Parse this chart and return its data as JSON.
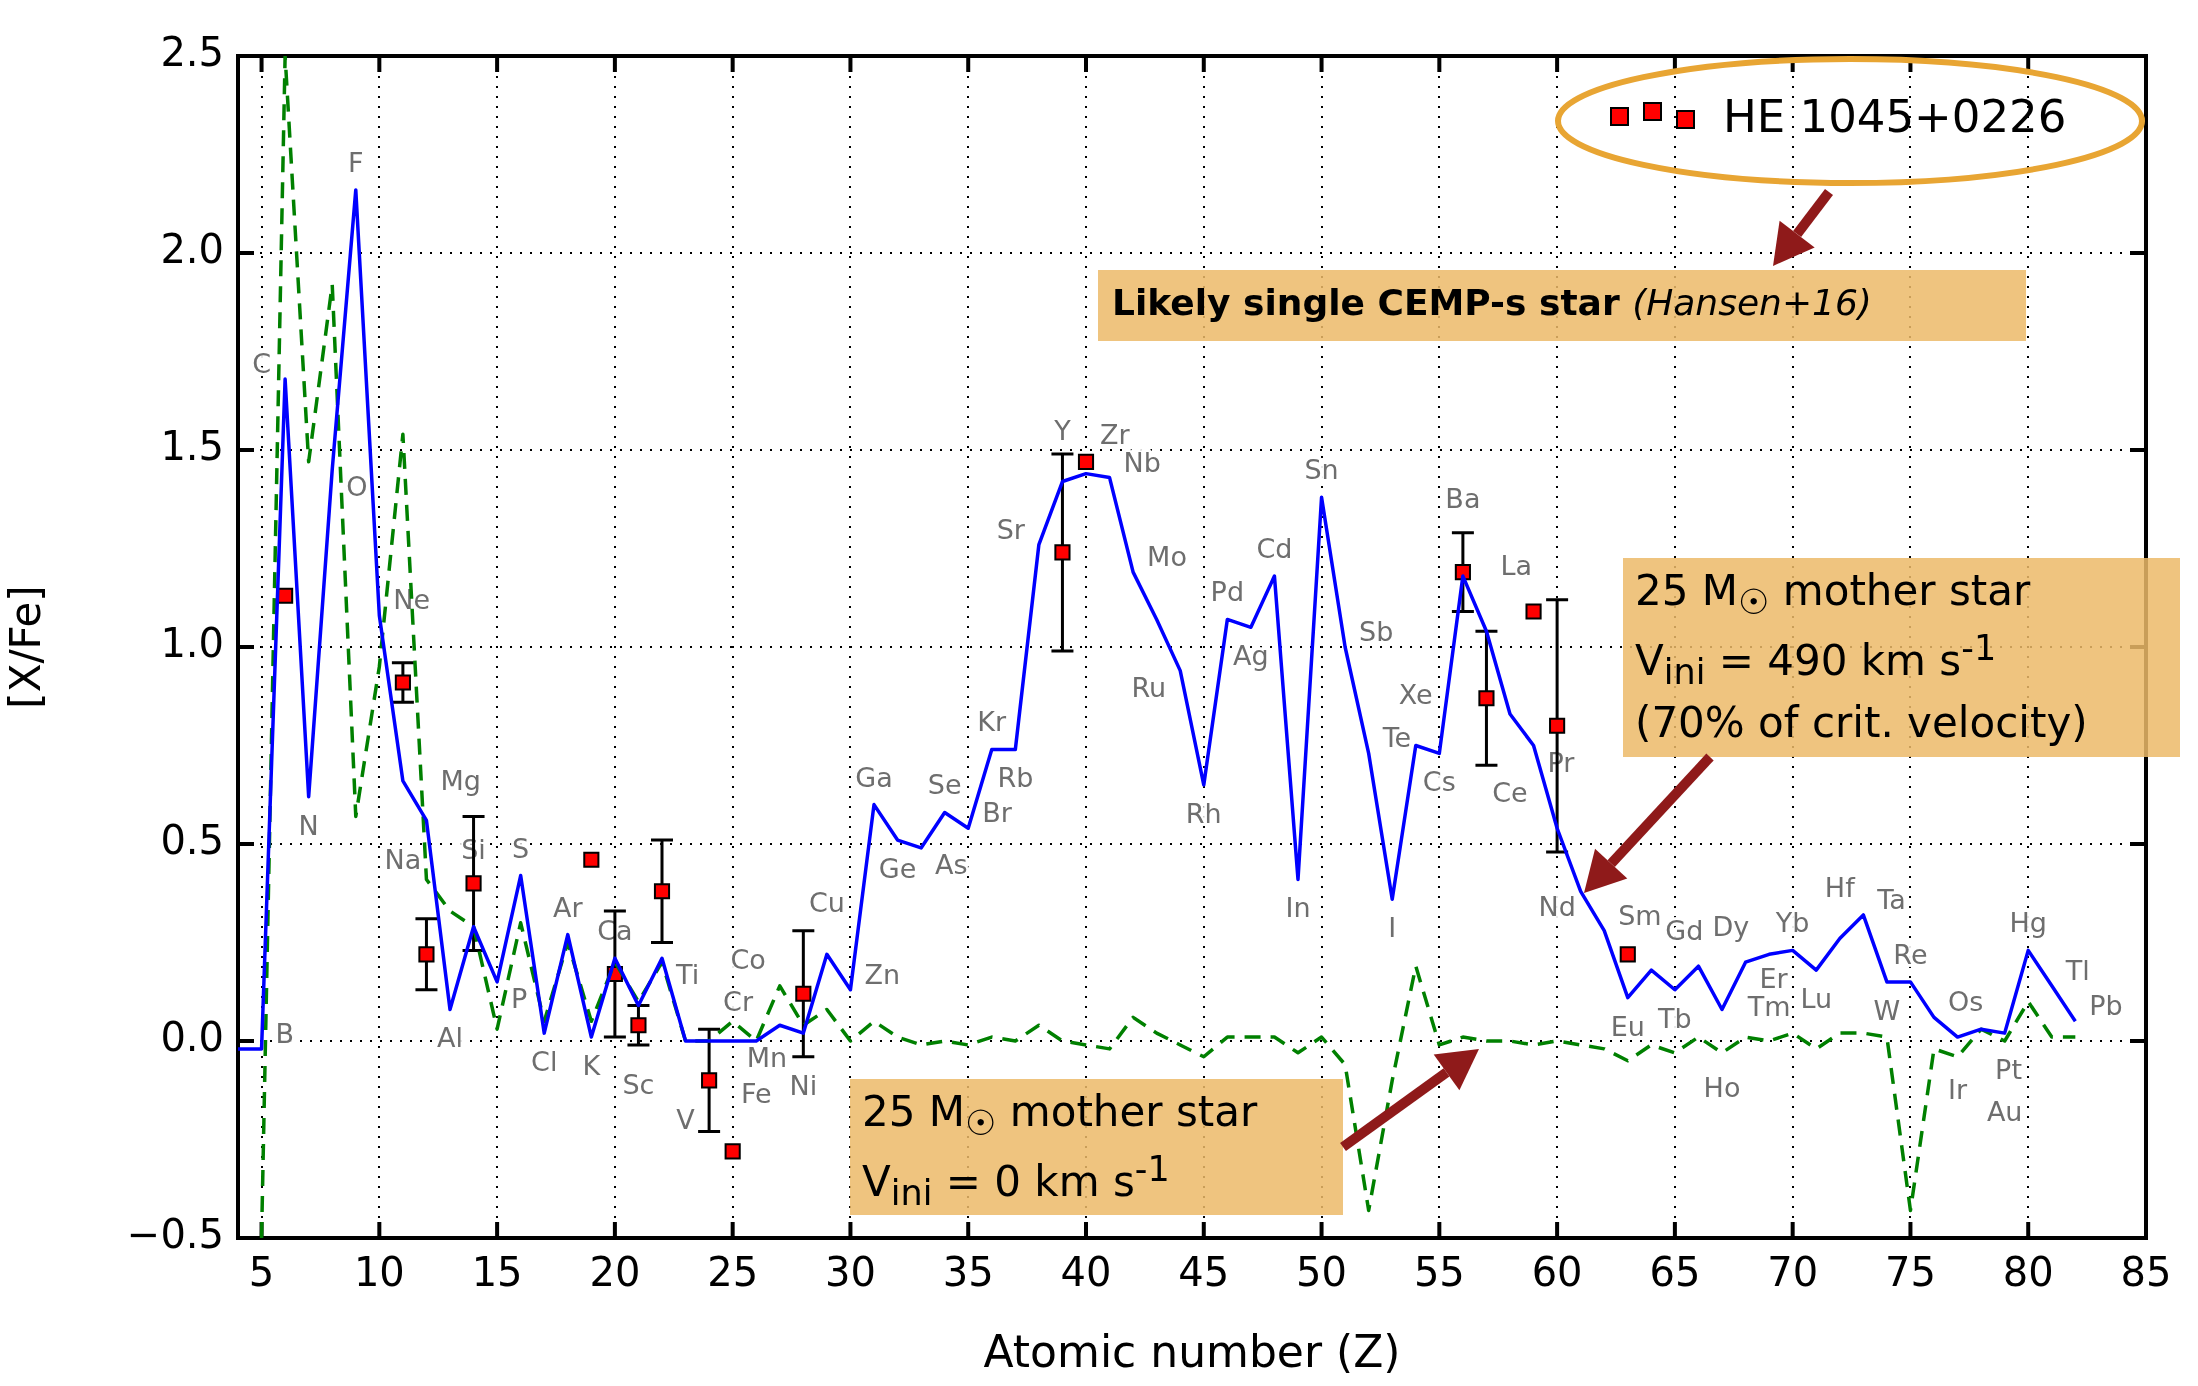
{
  "chart_data": {
    "type": "line",
    "xlabel": "Atomic number (Z)",
    "ylabel": "[X/Fe]",
    "xlim": [
      4,
      85
    ],
    "ylim": [
      -0.5,
      2.5
    ],
    "xticks": [
      5,
      10,
      15,
      20,
      25,
      30,
      35,
      40,
      45,
      50,
      55,
      60,
      65,
      70,
      75,
      80,
      85
    ],
    "yticks": [
      {
        "value": -0.5,
        "label": "−0.5"
      },
      {
        "value": 0,
        "label": "0.0"
      },
      0.5,
      {
        "value": 1,
        "label": "1.0"
      },
      1.5,
      {
        "value": 2,
        "label": "2.0"
      },
      2.5
    ],
    "grid": true,
    "legend": "top right",
    "series": [
      {
        "type": "line",
        "color": "#0000ff",
        "marker": "none",
        "line_style": "solid",
        "x": [
          4,
          5,
          6,
          7,
          8,
          9,
          10,
          11,
          12,
          13,
          14,
          15,
          16,
          17,
          18,
          19,
          20,
          21,
          22,
          23,
          24,
          25,
          26,
          27,
          28,
          29,
          30,
          31,
          32,
          33,
          34,
          35,
          36,
          37,
          38,
          39,
          40,
          41,
          42,
          43,
          44,
          45,
          46,
          47,
          48,
          49,
          50,
          51,
          52,
          53,
          54,
          55,
          56,
          57,
          58,
          59,
          60,
          61,
          62,
          63,
          64,
          65,
          66,
          67,
          68,
          69,
          70,
          71,
          72,
          73,
          74,
          75,
          76,
          77,
          78,
          79,
          80,
          81,
          82
        ],
        "values": [
          -0.02,
          -0.02,
          1.68,
          0.62,
          1.45,
          2.16,
          1.08,
          0.66,
          0.56,
          0.08,
          0.29,
          0.15,
          0.42,
          0.02,
          0.27,
          0.01,
          0.21,
          0.09,
          0.21,
          0,
          0,
          0,
          0,
          0.04,
          0.02,
          0.22,
          0.13,
          0.6,
          0.51,
          0.49,
          0.58,
          0.54,
          0.74,
          0.74,
          1.26,
          1.42,
          1.44,
          1.43,
          1.19,
          1.07,
          0.94,
          0.65,
          1.07,
          1.05,
          1.18,
          0.41,
          1.38,
          1.0,
          0.73,
          0.36,
          0.75,
          0.73,
          1.18,
          1.04,
          0.83,
          0.75,
          0.54,
          0.38,
          0.28,
          0.11,
          0.18,
          0.13,
          0.19,
          0.08,
          0.2,
          0.22,
          0.23,
          0.18,
          0.26,
          0.32,
          0.15,
          0.15,
          0.06,
          0.01,
          0.03,
          0.02,
          0.23,
          0.14,
          0.05
        ]
      },
      {
        "type": "line",
        "color": "#008000",
        "marker": "none",
        "line_style": "dashed",
        "x": [
          5,
          6,
          7,
          8,
          9,
          10,
          11,
          12,
          13,
          14,
          15,
          16,
          17,
          18,
          19,
          20,
          21,
          22,
          23,
          24,
          25,
          26,
          27,
          28,
          29,
          30,
          31,
          32,
          33,
          34,
          35,
          36,
          37,
          38,
          39,
          40,
          41,
          42,
          43,
          44,
          45,
          46,
          47,
          48,
          49,
          50,
          51,
          52,
          53,
          54,
          55,
          56,
          57,
          58,
          59,
          60,
          61,
          62,
          63,
          64,
          65,
          66,
          67,
          68,
          69,
          70,
          71,
          72,
          73,
          74,
          75,
          76,
          77,
          78,
          79,
          80,
          81,
          82
        ],
        "values": [
          -0.5,
          2.5,
          1.47,
          1.92,
          0.57,
          0.95,
          1.54,
          0.41,
          0.33,
          0.29,
          0.03,
          0.3,
          0.05,
          0.25,
          0.05,
          0.2,
          0.1,
          0.2,
          0,
          0,
          0.05,
          0,
          0.14,
          0.04,
          0.08,
          0,
          0.05,
          0.01,
          -0.01,
          0,
          -0.01,
          0.01,
          0,
          0.04,
          0,
          -0.01,
          -0.02,
          0.06,
          0.02,
          -0.01,
          -0.04,
          0.01,
          0.01,
          0.01,
          -0.03,
          0.01,
          -0.06,
          -0.43,
          -0.1,
          0.19,
          -0.01,
          0.01,
          0,
          0,
          -0.01,
          0,
          -0.01,
          -0.02,
          -0.05,
          -0.01,
          -0.03,
          0.01,
          -0.03,
          0.01,
          0,
          0.02,
          -0.02,
          0.02,
          0.02,
          0.01,
          -0.43,
          -0.02,
          -0.04,
          0.03,
          0,
          0.1,
          0.01,
          0.01
        ]
      },
      {
        "type": "scatter",
        "name": "HE 1045+0226",
        "color": "#ff0000",
        "marker": "square",
        "x": [
          6,
          11,
          12,
          14,
          19,
          20,
          21,
          22,
          24,
          25,
          28,
          39,
          40,
          56,
          57,
          59,
          60,
          63
        ],
        "values": [
          1.13,
          0.91,
          0.22,
          0.4,
          0.46,
          0.17,
          0.04,
          0.38,
          -0.1,
          -0.28,
          0.12,
          1.24,
          1.47,
          1.19,
          0.87,
          1.09,
          0.8,
          0.22
        ],
        "errors": [
          null,
          0.05,
          0.09,
          0.17,
          null,
          0.16,
          0.05,
          0.13,
          0.13,
          null,
          0.16,
          0.25,
          null,
          0.1,
          0.17,
          null,
          0.32,
          null
        ]
      }
    ],
    "annotations": [
      "Likely single CEMP-s star",
      "(Hansen+16)",
      "25 M$_{☉}$ mother star",
      "V$_{ini}$ = 490 km s$^{-1}$",
      "(70% of crit. velocity)",
      "25 M$_{☉}$ mother star",
      "V$_{ini}$ = 0 km s$^{-1}$",
      {
        "text": "B",
        "x": 5,
        "y": -0.02
      },
      {
        "text": "C",
        "x": 6,
        "y": 1.68
      },
      {
        "text": "N",
        "x": 7,
        "y": 0.62
      },
      {
        "text": "O",
        "x": 8,
        "y": 1.45
      },
      {
        "text": "F",
        "x": 9,
        "y": 2.16
      },
      {
        "text": "Ne",
        "x": 10,
        "y": 1.08
      },
      {
        "text": "Na",
        "x": 11,
        "y": 0.66
      },
      {
        "text": "Mg",
        "x": 12,
        "y": 0.56
      },
      {
        "text": "Al",
        "x": 13,
        "y": 0.08
      },
      {
        "text": "Si",
        "x": 14,
        "y": 0.29
      },
      {
        "text": "P",
        "x": 15,
        "y": 0.15
      },
      {
        "text": "S",
        "x": 16,
        "y": 0.42
      },
      {
        "text": "Cl",
        "x": 17,
        "y": 0.02
      },
      {
        "text": "Ar",
        "x": 18,
        "y": 0.27
      },
      {
        "text": "K",
        "x": 19,
        "y": 0.01
      },
      {
        "text": "Ca",
        "x": 20,
        "y": 0.21
      },
      {
        "text": "Sc",
        "x": 21,
        "y": 0.09
      },
      {
        "text": "Ti",
        "x": 22,
        "y": 0.21
      },
      {
        "text": "V",
        "x": 23,
        "y": 0
      },
      {
        "text": "Cr",
        "x": 24,
        "y": 0
      },
      {
        "text": "Mn",
        "x": 25,
        "y": 0
      },
      {
        "text": "Fe",
        "x": 26,
        "y": 0
      },
      {
        "text": "Co",
        "x": 27,
        "y": 0.04
      },
      {
        "text": "Ni",
        "x": 28,
        "y": 0.02
      },
      {
        "text": "Cu",
        "x": 29,
        "y": 0.22
      },
      {
        "text": "Zn",
        "x": 30,
        "y": 0.13
      },
      {
        "text": "Ga",
        "x": 31,
        "y": 0.6
      },
      {
        "text": "Ge",
        "x": 32,
        "y": 0.51
      },
      {
        "text": "As",
        "x": 33,
        "y": 0.49
      },
      {
        "text": "Se",
        "x": 34,
        "y": 0.58
      },
      {
        "text": "Br",
        "x": 35,
        "y": 0.54
      },
      {
        "text": "Kr",
        "x": 36,
        "y": 0.74
      },
      {
        "text": "Rb",
        "x": 37,
        "y": 0.74
      },
      {
        "text": "Sr",
        "x": 38,
        "y": 1.26
      },
      {
        "text": "Y",
        "x": 39,
        "y": 1.42
      },
      {
        "text": "Zr",
        "x": 40,
        "y": 1.44
      },
      {
        "text": "Nb",
        "x": 41,
        "y": 1.43
      },
      {
        "text": "Mo",
        "x": 42,
        "y": 1.19
      },
      {
        "text": "Ru",
        "x": 44,
        "y": 0.94
      },
      {
        "text": "Rh",
        "x": 45,
        "y": 0.65
      },
      {
        "text": "Pd",
        "x": 46,
        "y": 1.07
      },
      {
        "text": "Ag",
        "x": 47,
        "y": 1.05
      },
      {
        "text": "Cd",
        "x": 48,
        "y": 1.18
      },
      {
        "text": "In",
        "x": 49,
        "y": 0.41
      },
      {
        "text": "Sn",
        "x": 50,
        "y": 1.38
      },
      {
        "text": "Sb",
        "x": 51,
        "y": 1.0
      },
      {
        "text": "Te",
        "x": 52,
        "y": 0.73
      },
      {
        "text": "I",
        "x": 53,
        "y": 0.36
      },
      {
        "text": "Xe",
        "x": 54,
        "y": 0.75
      },
      {
        "text": "Cs",
        "x": 55,
        "y": 0.73
      },
      {
        "text": "Ba",
        "x": 56,
        "y": 1.18
      },
      {
        "text": "La",
        "x": 57,
        "y": 1.04
      },
      {
        "text": "Ce",
        "x": 58,
        "y": 0.83
      },
      {
        "text": "Pr",
        "x": 59,
        "y": 0.75
      },
      {
        "text": "Nd",
        "x": 60,
        "y": 0.54
      },
      {
        "text": "Sm",
        "x": 62,
        "y": 0.28
      },
      {
        "text": "Eu",
        "x": 63,
        "y": 0.11
      },
      {
        "text": "Gd",
        "x": 64,
        "y": 0.18
      },
      {
        "text": "Tb",
        "x": 65,
        "y": 0.13
      },
      {
        "text": "Dy",
        "x": 66,
        "y": 0.19
      },
      {
        "text": "Ho",
        "x": 67,
        "y": 0.08
      },
      {
        "text": "Er",
        "x": 68,
        "y": 0.2
      },
      {
        "text": "Tm",
        "x": 69,
        "y": 0.22
      },
      {
        "text": "Yb",
        "x": 70,
        "y": 0.23
      },
      {
        "text": "Lu",
        "x": 71,
        "y": 0.18
      },
      {
        "text": "Hf",
        "x": 72,
        "y": 0.26
      },
      {
        "text": "Ta",
        "x": 73,
        "y": 0.32
      },
      {
        "text": "W",
        "x": 74,
        "y": 0.15
      },
      {
        "text": "Re",
        "x": 75,
        "y": 0.15
      },
      {
        "text": "Os",
        "x": 76,
        "y": 0.06
      },
      {
        "text": "Ir",
        "x": 77,
        "y": 0.01
      },
      {
        "text": "Pt",
        "x": 78,
        "y": 0.03
      },
      {
        "text": "Au",
        "x": 79,
        "y": 0.02
      },
      {
        "text": "Hg",
        "x": 80,
        "y": 0.23
      },
      {
        "text": "Tl",
        "x": 81,
        "y": 0.14
      },
      {
        "text": "Pb",
        "x": 82,
        "y": 0.05
      }
    ]
  }
}
